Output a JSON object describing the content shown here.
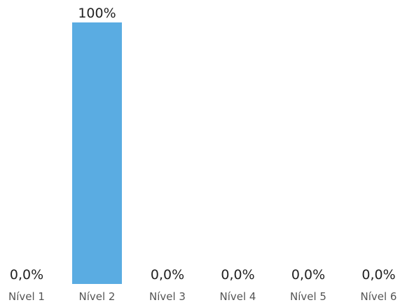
{
  "chart_data": {
    "type": "bar",
    "categories": [
      "Nível 1",
      "Nível 2",
      "Nível 3",
      "Nível 4",
      "Nível 5",
      "Nível 6"
    ],
    "values": [
      0,
      100,
      0,
      0,
      0,
      0
    ],
    "data_labels": [
      "0,0%",
      "100%",
      "0,0%",
      "0,0%",
      "0,0%",
      "0,0%"
    ],
    "ylim": [
      0,
      100
    ],
    "unit": "%",
    "bar_color": "#5aace2",
    "grid": false,
    "legend": "none"
  }
}
